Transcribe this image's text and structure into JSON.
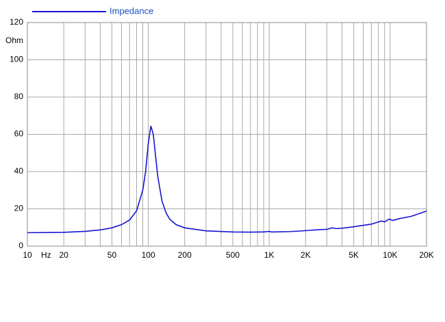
{
  "chart_data": {
    "type": "line",
    "log_x": true,
    "grid": true,
    "x_label": "Hz",
    "y_label": "Ohm",
    "x": [
      10,
      15,
      20,
      30,
      40,
      50,
      60,
      70,
      80,
      90,
      95,
      100,
      105,
      110,
      115,
      120,
      130,
      140,
      150,
      170,
      200,
      300,
      500,
      700,
      900,
      1000,
      1050,
      1500,
      2000,
      2500,
      3000,
      3300,
      3600,
      4000,
      5000,
      7000,
      8500,
      9000,
      9800,
      10500,
      12000,
      15000,
      20000
    ],
    "series": [
      {
        "name": "Impedance",
        "color": "#1414d2",
        "values": [
          7.2,
          7.3,
          7.4,
          7.9,
          8.7,
          9.8,
          11.5,
          14,
          19,
          30,
          40,
          55,
          64.5,
          60,
          48,
          37,
          24,
          18,
          14.5,
          11.5,
          9.8,
          8.2,
          7.6,
          7.5,
          7.6,
          7.9,
          7.6,
          7.8,
          8.3,
          8.8,
          9.0,
          9.8,
          9.4,
          9.6,
          10.4,
          11.8,
          13.5,
          13.0,
          14.5,
          13.8,
          14.8,
          16,
          18.8
        ]
      }
    ],
    "legend_color": "#1a4fbf",
    "xlim": [
      10,
      20000
    ],
    "xticks": [
      10,
      20,
      50,
      100,
      200,
      500,
      {
        "value": 1000,
        "label": "1K"
      },
      {
        "value": 2000,
        "label": "2K"
      },
      {
        "value": 5000,
        "label": "5K"
      },
      {
        "value": 10000,
        "label": "10K"
      },
      {
        "value": 20000,
        "label": "20K"
      }
    ],
    "xminor": [
      30,
      40,
      60,
      70,
      80,
      90,
      300,
      400,
      600,
      700,
      800,
      900,
      3000,
      4000,
      6000,
      7000,
      8000,
      9000
    ],
    "ylim": [
      0,
      120
    ],
    "yticks": [
      0,
      20,
      40,
      60,
      80,
      100,
      120
    ]
  }
}
